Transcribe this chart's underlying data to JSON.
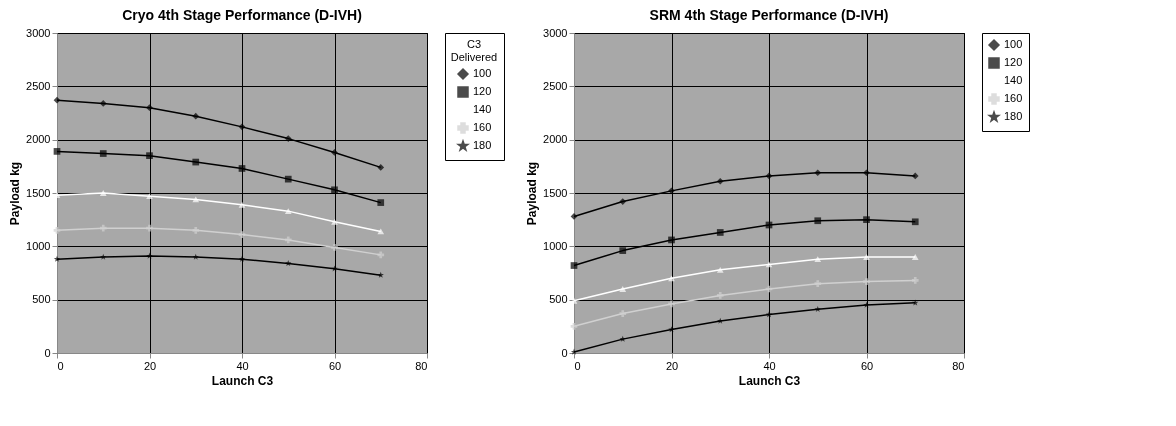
{
  "chart_data": [
    {
      "type": "line",
      "title": "Cryo 4th Stage Performance (D-IVH)",
      "xlabel": "Launch C3",
      "ylabel": "Payload kg",
      "legend_title": "C3 Delivered",
      "legend": "right",
      "x": [
        0,
        10,
        20,
        30,
        40,
        50,
        60,
        70
      ],
      "xlim": [
        0,
        80
      ],
      "xticks": [
        0,
        20,
        40,
        60,
        80
      ],
      "ylim": [
        0,
        3000
      ],
      "yticks": [
        0,
        500,
        1000,
        1500,
        2000,
        2500,
        3000
      ],
      "grid": true,
      "line_style": "solid",
      "series": [
        {
          "name": "100",
          "color": "#000000",
          "marker": "diamond",
          "values": [
            2370,
            2340,
            2300,
            2220,
            2120,
            2010,
            1880,
            1740
          ]
        },
        {
          "name": "120",
          "color": "#000000",
          "marker": "square",
          "values": [
            1890,
            1870,
            1850,
            1790,
            1730,
            1630,
            1530,
            1410
          ]
        },
        {
          "name": "140",
          "color": "#ffffff",
          "marker": "triangle",
          "values": [
            1480,
            1500,
            1470,
            1440,
            1390,
            1330,
            1230,
            1140
          ]
        },
        {
          "name": "160",
          "color": "#d0d0d0",
          "marker": "cross",
          "values": [
            1150,
            1170,
            1170,
            1150,
            1110,
            1060,
            990,
            920
          ]
        },
        {
          "name": "180",
          "color": "#000000",
          "marker": "star",
          "values": [
            880,
            900,
            910,
            900,
            880,
            840,
            790,
            730
          ]
        }
      ]
    },
    {
      "type": "line",
      "title": "SRM 4th Stage Performance (D-IVH)",
      "xlabel": "Launch C3",
      "ylabel": "Payload kg",
      "legend": "right",
      "x": [
        0,
        10,
        20,
        30,
        40,
        50,
        60,
        70
      ],
      "xlim": [
        0,
        80
      ],
      "xticks": [
        0,
        20,
        40,
        60,
        80
      ],
      "ylim": [
        0,
        3000
      ],
      "yticks": [
        0,
        500,
        1000,
        1500,
        2000,
        2500,
        3000
      ],
      "grid": true,
      "line_style": "solid",
      "series": [
        {
          "name": "100",
          "color": "#000000",
          "marker": "diamond",
          "values": [
            1280,
            1420,
            1520,
            1610,
            1660,
            1690,
            1690,
            1660
          ]
        },
        {
          "name": "120",
          "color": "#000000",
          "marker": "square",
          "values": [
            820,
            960,
            1060,
            1130,
            1200,
            1240,
            1250,
            1230
          ]
        },
        {
          "name": "140",
          "color": "#ffffff",
          "marker": "triangle",
          "values": [
            490,
            600,
            700,
            780,
            830,
            880,
            900,
            900
          ]
        },
        {
          "name": "160",
          "color": "#d0d0d0",
          "marker": "cross",
          "values": [
            250,
            370,
            460,
            540,
            600,
            650,
            670,
            680
          ]
        },
        {
          "name": "180",
          "color": "#000000",
          "marker": "star",
          "values": [
            10,
            130,
            220,
            300,
            360,
            410,
            450,
            470
          ]
        }
      ]
    }
  ]
}
